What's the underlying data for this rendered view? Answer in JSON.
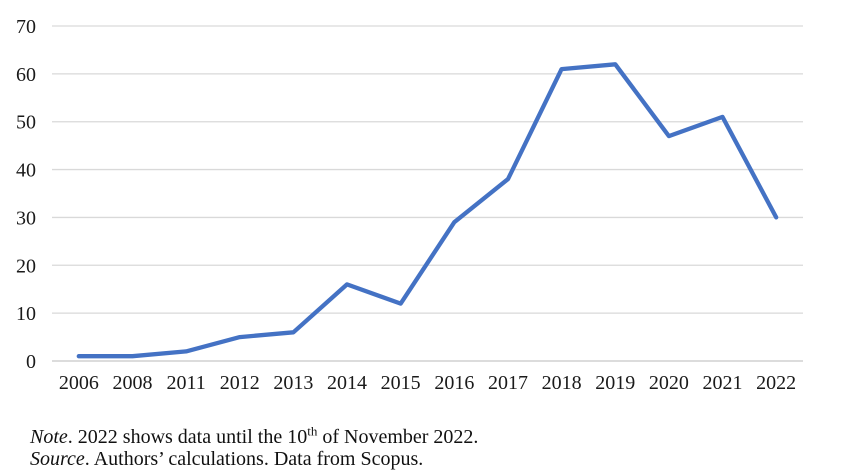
{
  "chart_data": {
    "type": "line",
    "categories": [
      "2006",
      "2008",
      "2011",
      "2012",
      "2013",
      "2014",
      "2015",
      "2016",
      "2017",
      "2018",
      "2019",
      "2020",
      "2021",
      "2022"
    ],
    "values": [
      1,
      1,
      2,
      5,
      6,
      16,
      12,
      29,
      38,
      61,
      62,
      47,
      51,
      30
    ],
    "title": "",
    "xlabel": "",
    "ylabel": "",
    "ylim": [
      0,
      70
    ],
    "yticks": [
      0,
      10,
      20,
      30,
      40,
      50,
      60,
      70
    ],
    "grid": "horizontal",
    "legend": "none",
    "line_color": "#4472C4",
    "gridline_color": "#d9d9d9",
    "axis_line_color": "#c8c8c8",
    "tick_label_color": "#1a1a1a"
  },
  "notes": {
    "note_label": "Note",
    "note_before": ". 2022 shows data until the 10",
    "note_sup": "th",
    "note_after": " of November 2022.",
    "source_label": "Source",
    "source_text": ". Authors’ calculations. Data from Scopus."
  }
}
